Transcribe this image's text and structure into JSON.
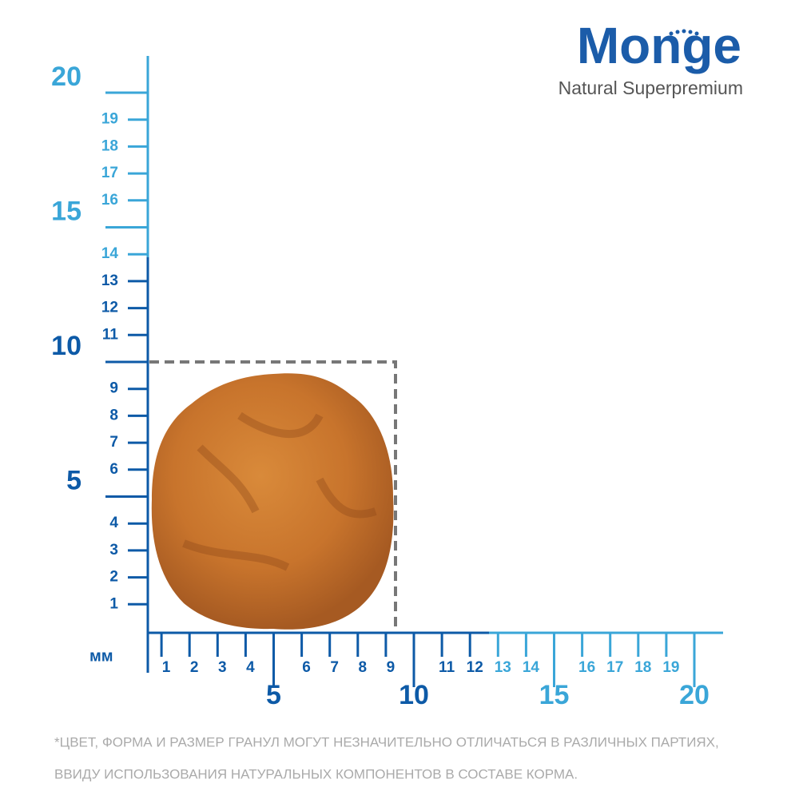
{
  "logo": {
    "brand": "Monge",
    "tagline": "Natural Superpremium"
  },
  "ruler": {
    "unit": "мм",
    "y_labels": [
      "1",
      "2",
      "3",
      "4",
      "5",
      "6",
      "7",
      "8",
      "9",
      "10",
      "11",
      "12",
      "13",
      "14",
      "15",
      "16",
      "17",
      "18",
      "19",
      "20"
    ],
    "x_labels": [
      "1",
      "2",
      "3",
      "4",
      "5",
      "6",
      "7",
      "8",
      "9",
      "10",
      "11",
      "12",
      "13",
      "14",
      "15",
      "16",
      "17",
      "18",
      "19",
      "20"
    ]
  },
  "footnote": [
    "*ЦВЕТ, ФОРМА И РАЗМЕР ГРАНУЛ МОГУТ НЕЗНАЧИТЕЛЬНО ОТЛИЧАТЬСЯ В РАЗЛИЧНЫХ ПАРТИЯХ,",
    "ВВИДУ ИСПОЛЬЗОВАНИЯ НАТУРАЛЬНЫХ КОМПОНЕНТОВ В СОСТАВЕ КОРМА."
  ]
}
